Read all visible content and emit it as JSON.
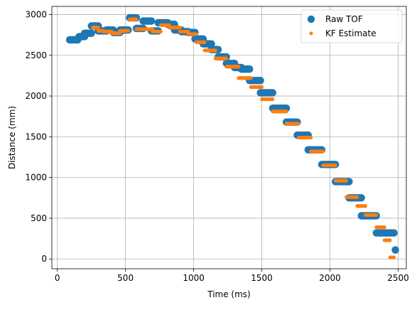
{
  "chart_data": {
    "type": "scatter",
    "title": "",
    "xlabel": "Time (ms)",
    "ylabel": "Distance (mm)",
    "xlim": [
      -40,
      2560
    ],
    "ylim": [
      -120,
      3100
    ],
    "xticks": [
      0,
      500,
      1000,
      1500,
      2000,
      2500
    ],
    "yticks": [
      0,
      500,
      1000,
      1500,
      2000,
      2500,
      3000
    ],
    "grid": true,
    "legend_position": "top-right",
    "series": [
      {
        "name": "Raw TOF",
        "color": "#1f77b4",
        "marker": "large-circle",
        "segments": [
          [
            90,
            150,
            2690
          ],
          [
            160,
            200,
            2730
          ],
          [
            200,
            250,
            2770
          ],
          [
            250,
            300,
            2860
          ],
          [
            300,
            360,
            2800
          ],
          [
            360,
            410,
            2810
          ],
          [
            410,
            460,
            2780
          ],
          [
            460,
            520,
            2810
          ],
          [
            530,
            580,
            2960
          ],
          [
            580,
            630,
            2830
          ],
          [
            630,
            690,
            2920
          ],
          [
            690,
            740,
            2800
          ],
          [
            740,
            810,
            2900
          ],
          [
            810,
            860,
            2880
          ],
          [
            860,
            910,
            2810
          ],
          [
            910,
            960,
            2790
          ],
          [
            960,
            1010,
            2780
          ],
          [
            1010,
            1070,
            2700
          ],
          [
            1070,
            1130,
            2640
          ],
          [
            1130,
            1180,
            2570
          ],
          [
            1180,
            1240,
            2480
          ],
          [
            1240,
            1300,
            2400
          ],
          [
            1300,
            1350,
            2350
          ],
          [
            1350,
            1410,
            2330
          ],
          [
            1410,
            1490,
            2190
          ],
          [
            1490,
            1580,
            2040
          ],
          [
            1580,
            1680,
            1850
          ],
          [
            1680,
            1760,
            1680
          ],
          [
            1760,
            1840,
            1520
          ],
          [
            1840,
            1940,
            1340
          ],
          [
            1940,
            2040,
            1160
          ],
          [
            2040,
            2140,
            950
          ],
          [
            2140,
            2230,
            750
          ],
          [
            2230,
            2340,
            530
          ],
          [
            2340,
            2470,
            320
          ],
          [
            2480,
            2480,
            110
          ]
        ]
      },
      {
        "name": "KF Estimate",
        "color": "#ff7f0e",
        "marker": "small-circle",
        "segments": [
          [
            260,
            300,
            2840
          ],
          [
            300,
            340,
            2800
          ],
          [
            340,
            400,
            2790
          ],
          [
            400,
            460,
            2770
          ],
          [
            460,
            520,
            2800
          ],
          [
            530,
            580,
            2940
          ],
          [
            580,
            640,
            2820
          ],
          [
            640,
            700,
            2820
          ],
          [
            700,
            760,
            2790
          ],
          [
            760,
            820,
            2870
          ],
          [
            820,
            900,
            2840
          ],
          [
            900,
            960,
            2790
          ],
          [
            960,
            1020,
            2760
          ],
          [
            1020,
            1080,
            2660
          ],
          [
            1080,
            1160,
            2560
          ],
          [
            1160,
            1240,
            2460
          ],
          [
            1240,
            1330,
            2360
          ],
          [
            1330,
            1420,
            2220
          ],
          [
            1420,
            1500,
            2110
          ],
          [
            1500,
            1580,
            1960
          ],
          [
            1580,
            1680,
            1810
          ],
          [
            1680,
            1770,
            1660
          ],
          [
            1770,
            1860,
            1490
          ],
          [
            1860,
            1950,
            1320
          ],
          [
            1950,
            2040,
            1150
          ],
          [
            2040,
            2120,
            960
          ],
          [
            2120,
            2200,
            760
          ],
          [
            2200,
            2260,
            650
          ],
          [
            2260,
            2340,
            540
          ],
          [
            2340,
            2400,
            390
          ],
          [
            2400,
            2440,
            230
          ],
          [
            2440,
            2470,
            20
          ]
        ]
      }
    ]
  }
}
